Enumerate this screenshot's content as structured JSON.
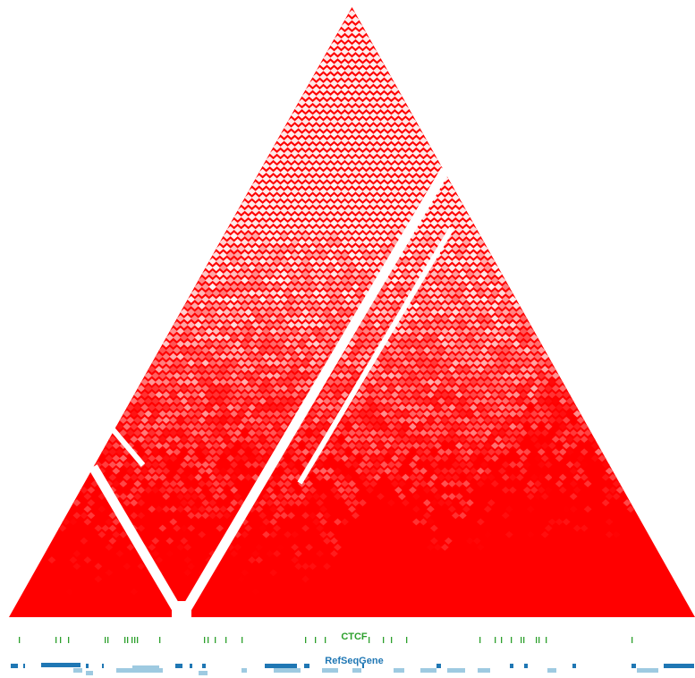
{
  "colors": {
    "background": "#ffffff",
    "contact_high": "#ff0000",
    "contact_low": "#fff0f0",
    "ctcf_track": "#2ca02c",
    "gene_dark": "#1f77b4",
    "gene_light": "#9ecae1"
  },
  "heatmap": {
    "type": "hic-contact-triangle",
    "color_scale": "white-to-red",
    "matrix_bins": 96
  },
  "tracks": {
    "ctcf": {
      "label": "CTCF"
    },
    "genes": {
      "label": "RefSeqGene"
    }
  }
}
